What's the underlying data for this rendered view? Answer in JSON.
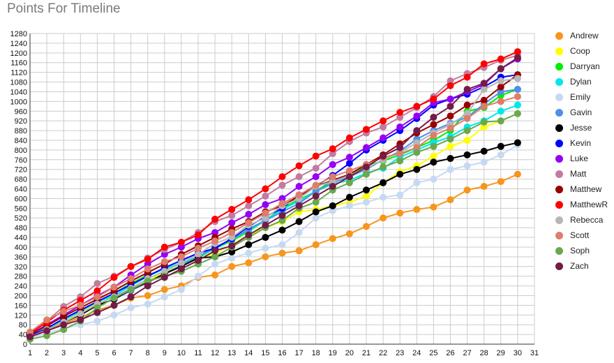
{
  "chart_data": {
    "type": "line",
    "title": "Points For Timeline",
    "xlabel": "",
    "ylabel": "",
    "xlim": [
      1,
      31
    ],
    "ylim": [
      0,
      1280
    ],
    "x_ticks": [
      1,
      2,
      3,
      4,
      5,
      6,
      7,
      8,
      9,
      10,
      11,
      12,
      13,
      14,
      15,
      16,
      17,
      18,
      19,
      20,
      21,
      22,
      23,
      24,
      25,
      26,
      27,
      28,
      29,
      30,
      31
    ],
    "y_ticks": [
      0,
      40,
      80,
      120,
      160,
      200,
      240,
      280,
      320,
      360,
      400,
      440,
      480,
      520,
      560,
      600,
      640,
      680,
      720,
      760,
      800,
      840,
      880,
      920,
      960,
      1000,
      1040,
      1080,
      1120,
      1160,
      1200,
      1240,
      1280
    ],
    "grid": true,
    "legend_position": "right",
    "x": [
      1,
      2,
      3,
      4,
      5,
      6,
      7,
      8,
      9,
      10,
      11,
      12,
      13,
      14,
      15,
      16,
      17,
      18,
      19,
      20,
      21,
      22,
      23,
      24,
      25,
      26,
      27,
      28,
      29,
      30
    ],
    "series": [
      {
        "name": "Andrew",
        "color": "#f7951d",
        "values": [
          30,
          55,
          85,
          110,
          140,
          160,
          190,
          200,
          225,
          240,
          275,
          285,
          320,
          335,
          360,
          375,
          385,
          410,
          435,
          455,
          485,
          520,
          540,
          555,
          565,
          595,
          635,
          650,
          670,
          700
        ]
      },
      {
        "name": "Coop",
        "color": "#ffff00",
        "values": [
          35,
          60,
          95,
          130,
          170,
          195,
          225,
          260,
          295,
          325,
          350,
          375,
          410,
          450,
          480,
          505,
          545,
          555,
          570,
          585,
          610,
          665,
          710,
          735,
          775,
          815,
          840,
          895,
          920,
          950
        ]
      },
      {
        "name": "Darryan",
        "color": "#00ee00",
        "values": [
          35,
          65,
          100,
          135,
          175,
          210,
          250,
          285,
          310,
          335,
          355,
          395,
          425,
          465,
          510,
          560,
          595,
          630,
          675,
          700,
          735,
          755,
          780,
          810,
          840,
          880,
          960,
          975,
          1025,
          1050
        ]
      },
      {
        "name": "Dylan",
        "color": "#00e8e8",
        "values": [
          35,
          65,
          100,
          135,
          175,
          200,
          240,
          280,
          310,
          335,
          360,
          395,
          430,
          470,
          510,
          555,
          590,
          630,
          660,
          675,
          705,
          725,
          770,
          800,
          830,
          855,
          895,
          920,
          960,
          985
        ]
      },
      {
        "name": "Emily",
        "color": "#c6d9f2",
        "values": [
          25,
          45,
          65,
          80,
          95,
          120,
          150,
          165,
          195,
          225,
          280,
          330,
          355,
          375,
          395,
          410,
          460,
          520,
          550,
          570,
          585,
          605,
          615,
          665,
          680,
          720,
          735,
          750,
          780,
          820
        ]
      },
      {
        "name": "Gavin",
        "color": "#4f8fe8",
        "values": [
          30,
          60,
          90,
          125,
          160,
          185,
          220,
          255,
          290,
          325,
          360,
          400,
          430,
          475,
          510,
          545,
          580,
          630,
          665,
          690,
          720,
          760,
          795,
          845,
          880,
          910,
          935,
          990,
          1040,
          1050
        ]
      },
      {
        "name": "Jesse",
        "color": "#000000",
        "values": [
          30,
          60,
          90,
          120,
          160,
          185,
          225,
          255,
          290,
          320,
          355,
          360,
          380,
          410,
          440,
          470,
          505,
          545,
          570,
          605,
          635,
          665,
          700,
          720,
          750,
          765,
          780,
          795,
          815,
          830
        ]
      },
      {
        "name": "Kevin",
        "color": "#0000ff",
        "values": [
          35,
          65,
          105,
          140,
          175,
          210,
          245,
          280,
          315,
          345,
          375,
          395,
          435,
          485,
          525,
          560,
          615,
          650,
          695,
          745,
          800,
          840,
          880,
          930,
          985,
          1010,
          1030,
          1060,
          1100,
          1110
        ]
      },
      {
        "name": "Luke",
        "color": "#9400f5",
        "values": [
          40,
          80,
          120,
          160,
          200,
          235,
          285,
          330,
          370,
          400,
          435,
          460,
          500,
          535,
          575,
          600,
          650,
          690,
          740,
          770,
          810,
          850,
          895,
          940,
          995,
          1010,
          1040,
          1070,
          1135,
          1175
        ]
      },
      {
        "name": "Matt",
        "color": "#c27ba0",
        "values": [
          45,
          95,
          155,
          195,
          250,
          280,
          320,
          355,
          390,
          420,
          460,
          505,
          530,
          570,
          610,
          655,
          690,
          725,
          785,
          835,
          870,
          895,
          935,
          975,
          1020,
          1085,
          1115,
          1140,
          1170,
          1190
        ]
      },
      {
        "name": "Matthew",
        "color": "#990000",
        "values": [
          40,
          75,
          115,
          150,
          185,
          220,
          260,
          295,
          330,
          370,
          405,
          440,
          475,
          505,
          545,
          570,
          610,
          650,
          675,
          700,
          740,
          780,
          825,
          870,
          905,
          940,
          985,
          1005,
          1060,
          1110
        ]
      },
      {
        "name": "MatthewR",
        "color": "#ff0000",
        "values": [
          45,
          90,
          140,
          180,
          220,
          275,
          320,
          350,
          400,
          420,
          450,
          515,
          555,
          595,
          640,
          690,
          735,
          775,
          805,
          850,
          885,
          920,
          955,
          980,
          1010,
          1065,
          1100,
          1155,
          1175,
          1205
        ]
      },
      {
        "name": "Rebecca",
        "color": "#b7b7b7",
        "values": [
          30,
          60,
          90,
          125,
          165,
          195,
          230,
          270,
          300,
          335,
          370,
          415,
          440,
          490,
          520,
          570,
          600,
          650,
          670,
          695,
          725,
          760,
          790,
          830,
          870,
          905,
          950,
          1050,
          1085,
          1095
        ]
      },
      {
        "name": "Scott",
        "color": "#dd7e6b",
        "values": [
          50,
          100,
          135,
          160,
          195,
          235,
          270,
          310,
          340,
          360,
          395,
          425,
          460,
          500,
          540,
          580,
          615,
          655,
          690,
          715,
          740,
          770,
          785,
          810,
          860,
          890,
          930,
          980,
          1000,
          1020
        ]
      },
      {
        "name": "Soph",
        "color": "#6aa84f",
        "values": [
          20,
          35,
          60,
          95,
          150,
          190,
          225,
          260,
          280,
          300,
          330,
          360,
          400,
          440,
          480,
          510,
          560,
          585,
          635,
          665,
          700,
          730,
          755,
          790,
          815,
          845,
          880,
          915,
          920,
          950
        ]
      },
      {
        "name": "Zach",
        "color": "#741b47",
        "values": [
          30,
          55,
          80,
          100,
          130,
          160,
          195,
          240,
          275,
          310,
          345,
          385,
          405,
          450,
          490,
          530,
          570,
          610,
          650,
          690,
          730,
          775,
          810,
          880,
          935,
          980,
          1050,
          1075,
          1135,
          1180
        ]
      }
    ]
  }
}
